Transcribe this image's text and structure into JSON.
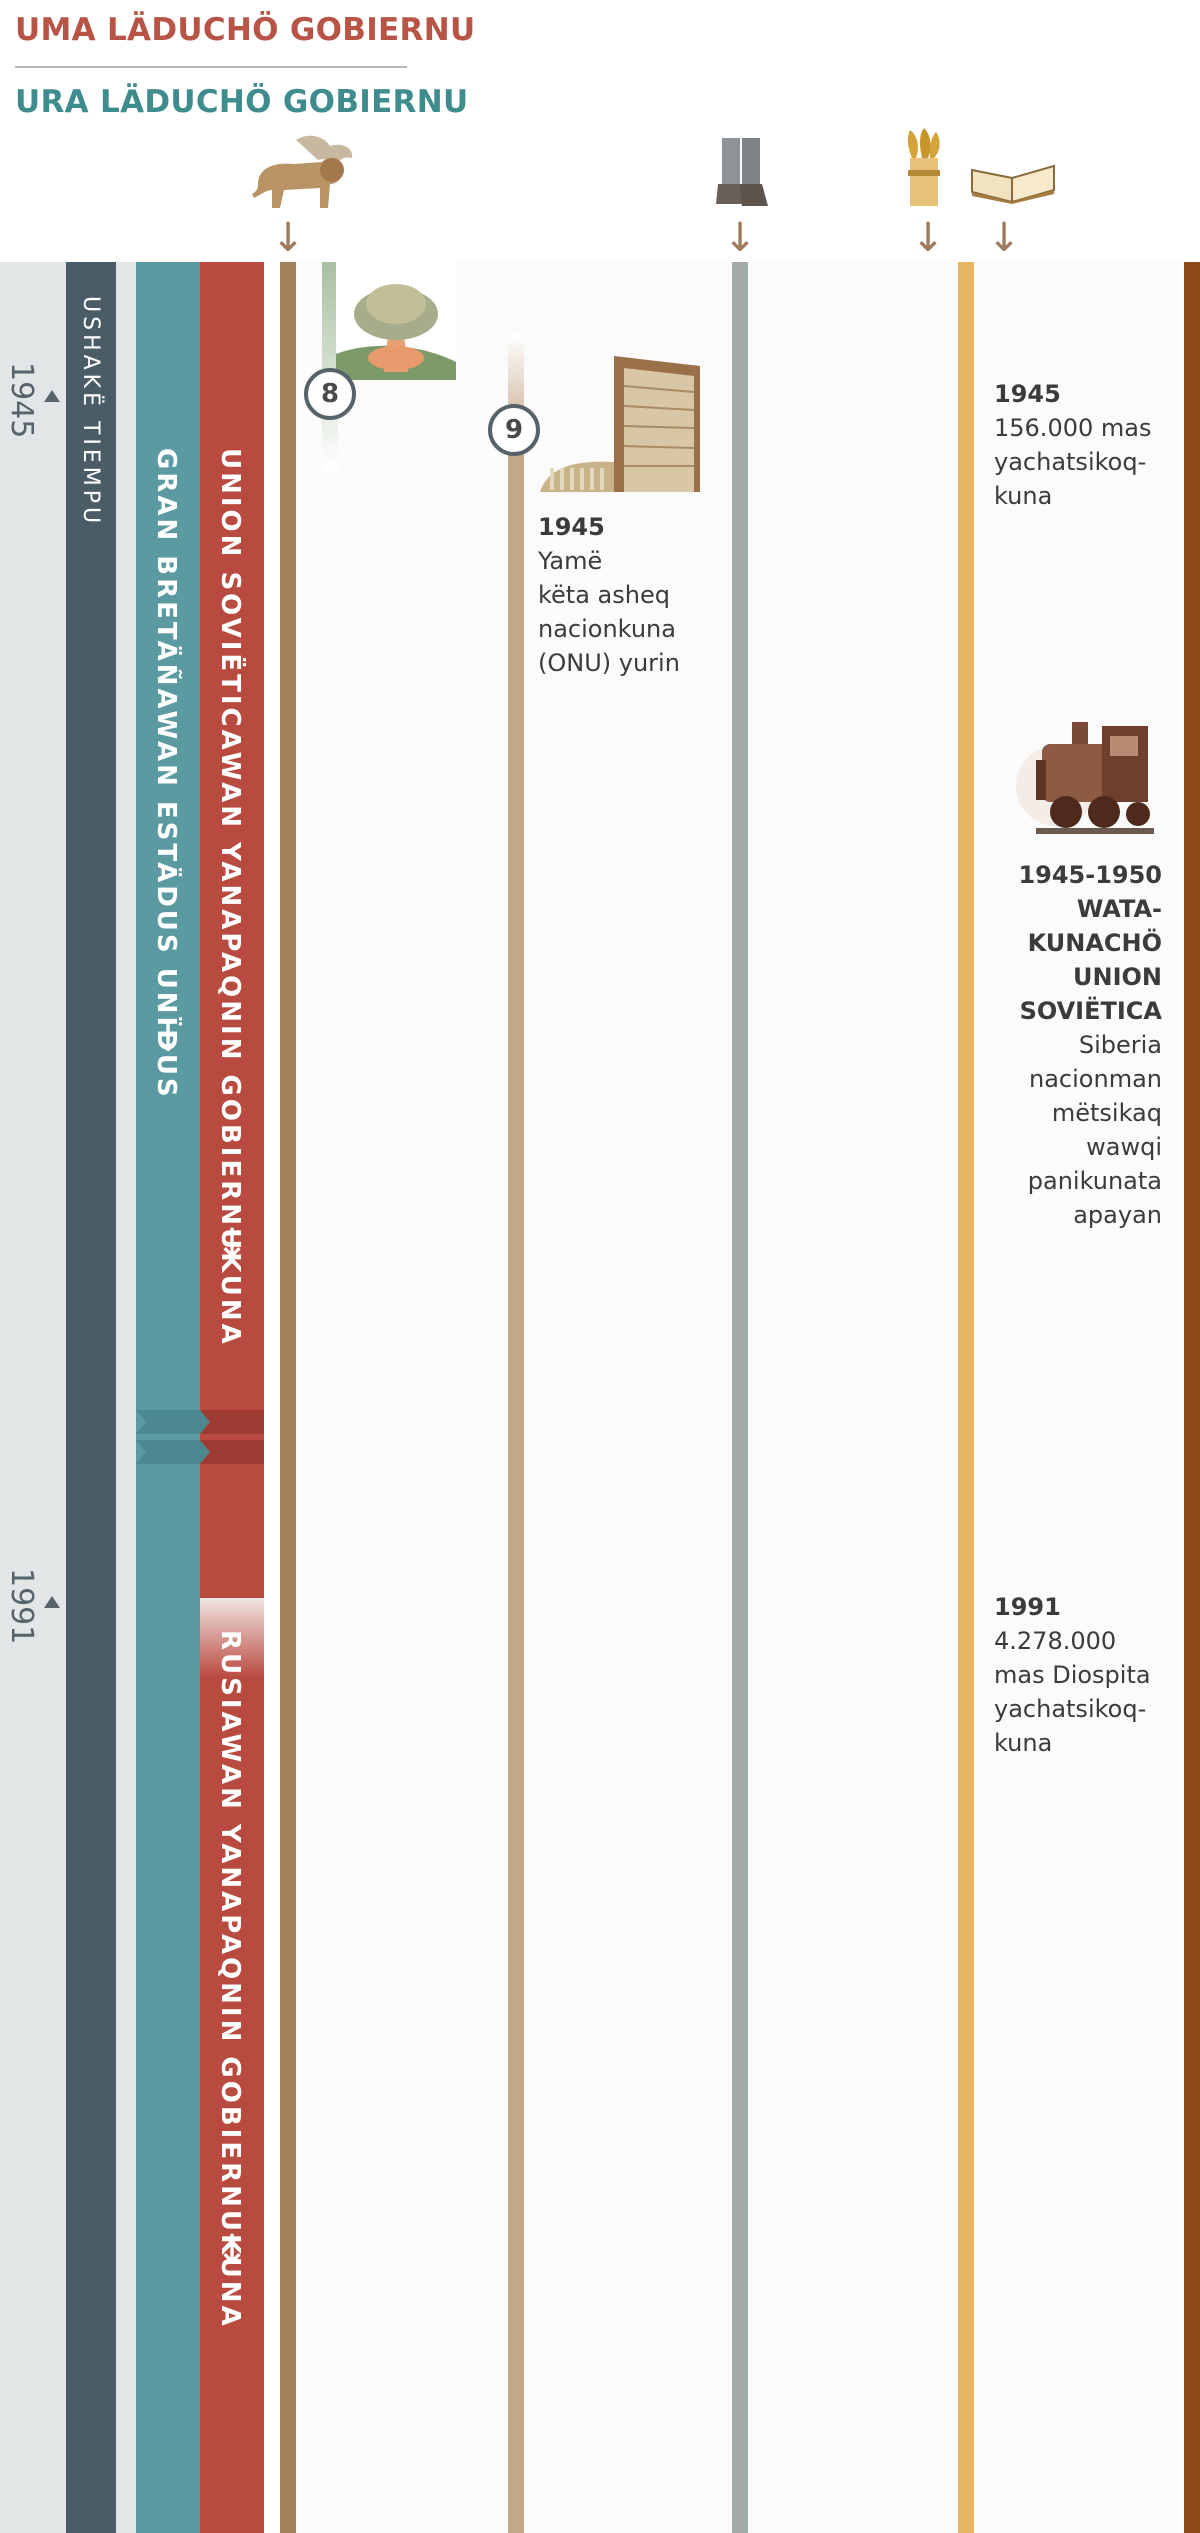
{
  "header": {
    "title_first": "UMA LÄDUCHÖ GOBIERNU",
    "title_second": "URA LÄDUCHÖ GOBIERNU"
  },
  "icons": {
    "lion": "winged-lion-icon",
    "feet": "iron-clay-feet-icon",
    "wheat": "wheat-bundle-icon",
    "book": "open-bible-icon",
    "bomb": "mushroom-cloud-icon",
    "un": "un-building-icon",
    "train": "steam-train-icon"
  },
  "arrow_glyph": "↓",
  "bands": {
    "past_time": "USHAKË TIEMPU",
    "uk_usa": "GRAN BRETÄÑAWAN ESTÄDUS UNÏDUS",
    "soviet": "UNION SOVIËTICAWAN YANAPAQNIN GOBIERNUKUNA",
    "russia": "RUSIAWAN YANAPAQNIN GOBIERNUKUNA"
  },
  "years": {
    "y1945": "1945",
    "y1991": "1991"
  },
  "markers": {
    "m8": "8",
    "m9": "9"
  },
  "events": {
    "un": {
      "year": "1945",
      "lines": [
        "Yamë",
        "këta asheq",
        "nacionkuna",
        "(ONU) yurin"
      ]
    },
    "believers_1945": {
      "year": "1945",
      "lines": [
        "156.000 mas",
        "yachatsikoq-",
        "kuna"
      ]
    },
    "deport": {
      "year": "1945-1950",
      "lines": [
        "WATA-",
        "KUNACHÖ",
        "UNION",
        "SOVIËTICA"
      ],
      "desc": [
        "Siberia",
        "nacionman",
        "mëtsikaq",
        "wawqi",
        "panikunata",
        "apayan"
      ]
    },
    "believers_1991": {
      "year": "1991",
      "lines": [
        "4.278.000",
        "mas Diospita",
        "yachatsikoq-",
        "kuna"
      ]
    }
  },
  "colors": {
    "red": "#b94a3f",
    "teal": "#5c9aa2",
    "slate": "#4a5d66",
    "bronze": "#a5825e",
    "sand": "#c3a988",
    "gray": "#a4aaa6",
    "gold": "#e6b660",
    "brown": "#8c4a1a"
  }
}
